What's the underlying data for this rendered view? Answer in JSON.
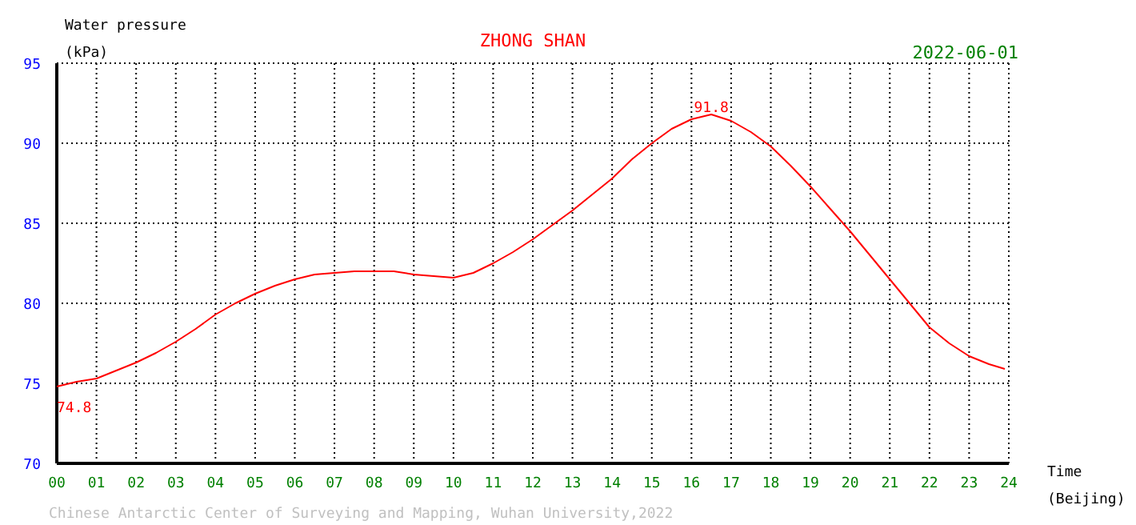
{
  "chart_data": {
    "type": "line",
    "title": "ZHONG SHAN",
    "subtitle": "2022-06-01",
    "xlabel": "Time\n(Beijing)",
    "ylabel": "Water pressure\n(kPa)",
    "x": [
      0,
      0.5,
      1,
      1.5,
      2,
      2.5,
      3,
      3.5,
      4,
      4.5,
      5,
      5.5,
      6,
      6.5,
      7,
      7.5,
      8,
      8.5,
      9,
      9.5,
      10,
      10.5,
      11,
      11.5,
      12,
      12.5,
      13,
      13.5,
      14,
      14.5,
      15,
      15.5,
      16,
      16.5,
      17,
      17.5,
      18,
      18.5,
      19,
      19.5,
      20,
      20.5,
      21,
      21.5,
      22,
      22.5,
      23,
      23.5,
      23.9
    ],
    "series": [
      {
        "color": "#ff0000",
        "values": [
          74.8,
          75.1,
          75.3,
          75.8,
          76.3,
          76.9,
          77.6,
          78.4,
          79.3,
          80.0,
          80.6,
          81.1,
          81.5,
          81.8,
          81.9,
          82.0,
          82.0,
          82.0,
          81.8,
          81.7,
          81.6,
          81.9,
          82.5,
          83.2,
          84.0,
          84.9,
          85.8,
          86.8,
          87.8,
          89.0,
          90.0,
          90.9,
          91.5,
          91.8,
          91.4,
          90.7,
          89.8,
          88.6,
          87.3,
          85.9,
          84.5,
          83.0,
          81.5,
          80.0,
          78.5,
          77.5,
          76.7,
          76.2,
          75.9
        ]
      }
    ],
    "xlim": [
      0,
      24
    ],
    "ylim": [
      70,
      95
    ],
    "xticks": [
      {
        "value": 0,
        "label": "00"
      },
      {
        "value": 1,
        "label": "01"
      },
      {
        "value": 2,
        "label": "02"
      },
      {
        "value": 3,
        "label": "03"
      },
      {
        "value": 4,
        "label": "04"
      },
      {
        "value": 5,
        "label": "05"
      },
      {
        "value": 6,
        "label": "06"
      },
      {
        "value": 7,
        "label": "07"
      },
      {
        "value": 8,
        "label": "08"
      },
      {
        "value": 9,
        "label": "09"
      },
      10,
      11,
      12,
      13,
      14,
      15,
      16,
      17,
      18,
      19,
      20,
      21,
      22,
      23,
      24
    ],
    "yticks": [
      70,
      75,
      80,
      85,
      90,
      95
    ],
    "grid": true,
    "marker": "none",
    "line_style": "solid",
    "annotations": [
      {
        "text": "74.8",
        "x": 0,
        "y": 74.8
      },
      {
        "text": "91.8",
        "x": 16.5,
        "y": 91.8
      },
      "Chinese Antarctic Center of Surveying and Mapping, Wuhan University,2022"
    ]
  }
}
